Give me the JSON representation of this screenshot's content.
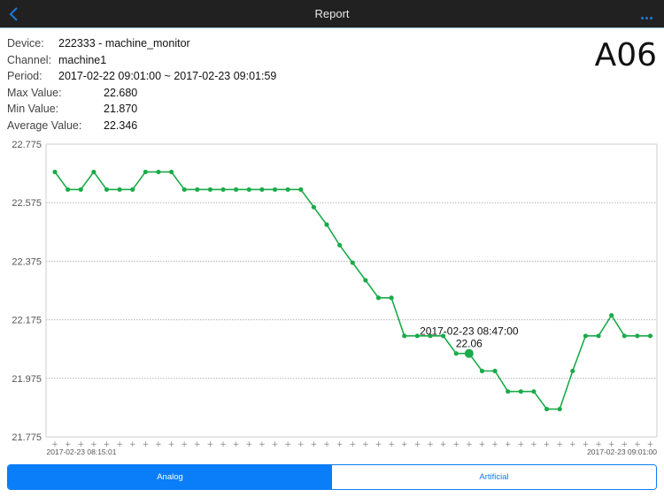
{
  "navbar": {
    "title": "Report",
    "back_icon": "chevron-left-icon",
    "more_icon": "ellipsis-icon",
    "accent_color": "#1a7ae0"
  },
  "info": {
    "device_label": "Device:",
    "device_value": "222333 - machine_monitor",
    "channel_label": "Channel:",
    "channel_value": "machine1",
    "period_label": "Period:",
    "period_value": "2017-02-22 09:01:00 ~ 2017-02-23 09:01:59",
    "max_label": "Max Value:",
    "max_value": "22.680",
    "min_label": "Min Value:",
    "min_value": "21.870",
    "avg_label": "Average Value:",
    "avg_value": "22.346"
  },
  "machine_id": "A06",
  "chart": {
    "x_start_label": "2017-02-23 08:15:01",
    "x_end_label": "2017-02-23 09:01:00",
    "tooltip_time": "2017-02-23 08:47:00",
    "tooltip_value": "22.06",
    "line_color": "#1aab4a"
  },
  "chart_data": {
    "type": "line",
    "title": "",
    "xlabel": "",
    "ylabel": "",
    "ylim": [
      21.775,
      22.775
    ],
    "yticks": [
      "22.775",
      "22.575",
      "22.375",
      "22.175",
      "21.975",
      "21.775"
    ],
    "x_tick_labels": [
      "2017-02-23 08:15:01",
      "2017-02-23 09:01:00"
    ],
    "grid": "horizontal dotted",
    "highlighted_point": {
      "index": 32,
      "time": "2017-02-23 08:47:00",
      "value": 22.06
    },
    "series": [
      {
        "name": "machine1",
        "color": "#1aab4a",
        "values": [
          22.68,
          22.62,
          22.62,
          22.68,
          22.62,
          22.62,
          22.62,
          22.68,
          22.68,
          22.68,
          22.62,
          22.62,
          22.62,
          22.62,
          22.62,
          22.62,
          22.62,
          22.62,
          22.62,
          22.62,
          22.56,
          22.5,
          22.43,
          22.37,
          22.31,
          22.25,
          22.25,
          22.12,
          22.12,
          22.12,
          22.12,
          22.06,
          22.06,
          22.0,
          22.0,
          21.93,
          21.93,
          21.93,
          21.87,
          21.87,
          22.0,
          22.12,
          22.12,
          22.19,
          22.12,
          22.12,
          22.12
        ]
      }
    ]
  },
  "segmented_control": {
    "options": [
      {
        "label": "Analog",
        "active": true
      },
      {
        "label": "Artificial",
        "active": false
      }
    ],
    "active_color": "#0a7df8"
  }
}
